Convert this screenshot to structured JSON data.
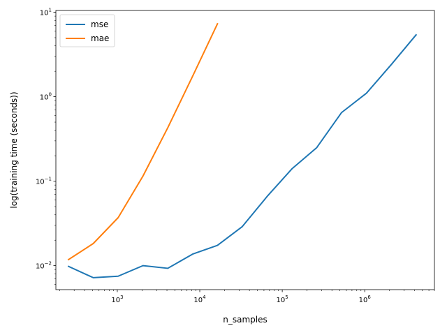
{
  "chart_data": {
    "type": "line",
    "title": "",
    "xlabel": "n_samples",
    "ylabel": "log(training time (seconds))",
    "xscale": "log",
    "yscale": "log",
    "xlim": [
      180,
      7000000
    ],
    "ylim": [
      0.0052,
      10.5
    ],
    "x_ticks": [
      {
        "value": 1000,
        "base": "10",
        "exp": "3"
      },
      {
        "value": 10000,
        "base": "10",
        "exp": "4"
      },
      {
        "value": 100000,
        "base": "10",
        "exp": "5"
      },
      {
        "value": 1000000,
        "base": "10",
        "exp": "6"
      }
    ],
    "y_ticks": [
      {
        "value": 0.01,
        "base": "10",
        "exp": "−2"
      },
      {
        "value": 0.1,
        "base": "10",
        "exp": "−1"
      },
      {
        "value": 1,
        "base": "10",
        "exp": "0"
      },
      {
        "value": 10,
        "base": "10",
        "exp": "1"
      }
    ],
    "grid": false,
    "legend_position": "top-left",
    "series": [
      {
        "name": "mse",
        "color": "#1f77b4",
        "x": [
          256,
          512,
          1024,
          2048,
          4096,
          8192,
          16384,
          32768,
          65536,
          131072,
          262144,
          524288,
          1048576,
          2097152,
          4194304
        ],
        "y": [
          0.0098,
          0.0072,
          0.0075,
          0.01,
          0.0093,
          0.0137,
          0.0174,
          0.029,
          0.066,
          0.14,
          0.25,
          0.65,
          1.1,
          2.4,
          5.4
        ]
      },
      {
        "name": "mae",
        "color": "#ff7f0e",
        "x": [
          256,
          512,
          1024,
          2048,
          4096,
          8192,
          16384
        ],
        "y": [
          0.0118,
          0.0183,
          0.037,
          0.115,
          0.43,
          1.75,
          7.3
        ]
      }
    ]
  }
}
